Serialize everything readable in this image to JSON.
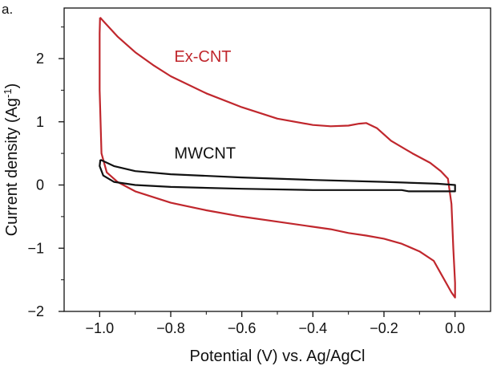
{
  "panel_label": "a.",
  "chart_data": {
    "type": "line",
    "title": "",
    "xlabel": "Potential (V) vs. Ag/AgCl",
    "ylabel": "Current density (Ag",
    "ylabel_sup": "-1",
    "ylabel_close": ")",
    "xlim": [
      -1.1,
      0.1
    ],
    "ylim": [
      -2.0,
      2.8
    ],
    "x_ticks": [
      -1.0,
      -0.8,
      -0.6,
      -0.4,
      -0.2,
      0.0
    ],
    "x_tick_labels": [
      "-1.0",
      "-0.8",
      "-0.6",
      "-0.4",
      "-0.2",
      "0.0"
    ],
    "y_ticks": [
      -2,
      -1,
      0,
      1,
      2
    ],
    "y_tick_labels": [
      "-2",
      "-1",
      "0",
      "1",
      "2"
    ],
    "grid": false,
    "series": [
      {
        "name": "Ex-CNT",
        "color": "#c0272d",
        "x": [
          -0.999,
          -0.95,
          -0.9,
          -0.85,
          -0.8,
          -0.7,
          -0.6,
          -0.5,
          -0.4,
          -0.35,
          -0.3,
          -0.27,
          -0.25,
          -0.22,
          -0.18,
          -0.12,
          -0.07,
          -0.04,
          -0.02,
          -0.01,
          -0.005,
          0.0,
          0.0,
          -0.01,
          -0.02,
          -0.04,
          -0.06,
          -0.1,
          -0.15,
          -0.2,
          -0.25,
          -0.3,
          -0.35,
          -0.4,
          -0.5,
          -0.6,
          -0.7,
          -0.8,
          -0.9,
          -0.95,
          -0.98,
          -0.995,
          -1.0,
          -1.0,
          -0.999
        ],
        "y": [
          2.65,
          2.35,
          2.1,
          1.9,
          1.72,
          1.45,
          1.23,
          1.05,
          0.95,
          0.93,
          0.94,
          0.97,
          0.98,
          0.9,
          0.7,
          0.5,
          0.35,
          0.22,
          0.1,
          -0.3,
          -1.0,
          -1.55,
          -1.78,
          -1.7,
          -1.6,
          -1.4,
          -1.2,
          -1.05,
          -0.93,
          -0.85,
          -0.8,
          -0.76,
          -0.7,
          -0.66,
          -0.58,
          -0.5,
          -0.4,
          -0.28,
          -0.1,
          0.05,
          0.2,
          0.5,
          1.5,
          2.4,
          2.65
        ]
      },
      {
        "name": "MWCNT",
        "color": "#111111",
        "x": [
          -0.998,
          -0.96,
          -0.9,
          -0.8,
          -0.6,
          -0.4,
          -0.2,
          -0.05,
          0.0,
          0.0,
          -0.05,
          -0.13,
          -0.15,
          -0.2,
          -0.4,
          -0.6,
          -0.8,
          -0.9,
          -0.96,
          -0.99,
          -1.0,
          -0.998
        ],
        "y": [
          0.4,
          0.3,
          0.22,
          0.17,
          0.12,
          0.08,
          0.05,
          0.02,
          0.0,
          -0.1,
          -0.1,
          -0.1,
          -0.08,
          -0.08,
          -0.08,
          -0.06,
          -0.03,
          0.0,
          0.05,
          0.15,
          0.3,
          0.4
        ]
      }
    ],
    "annotations": [
      {
        "text": "Ex-CNT",
        "x": -0.79,
        "y": 1.95,
        "color": "#c0272d"
      },
      {
        "text": "MWCNT",
        "x": -0.79,
        "y": 0.42,
        "color": "#111111"
      }
    ]
  }
}
